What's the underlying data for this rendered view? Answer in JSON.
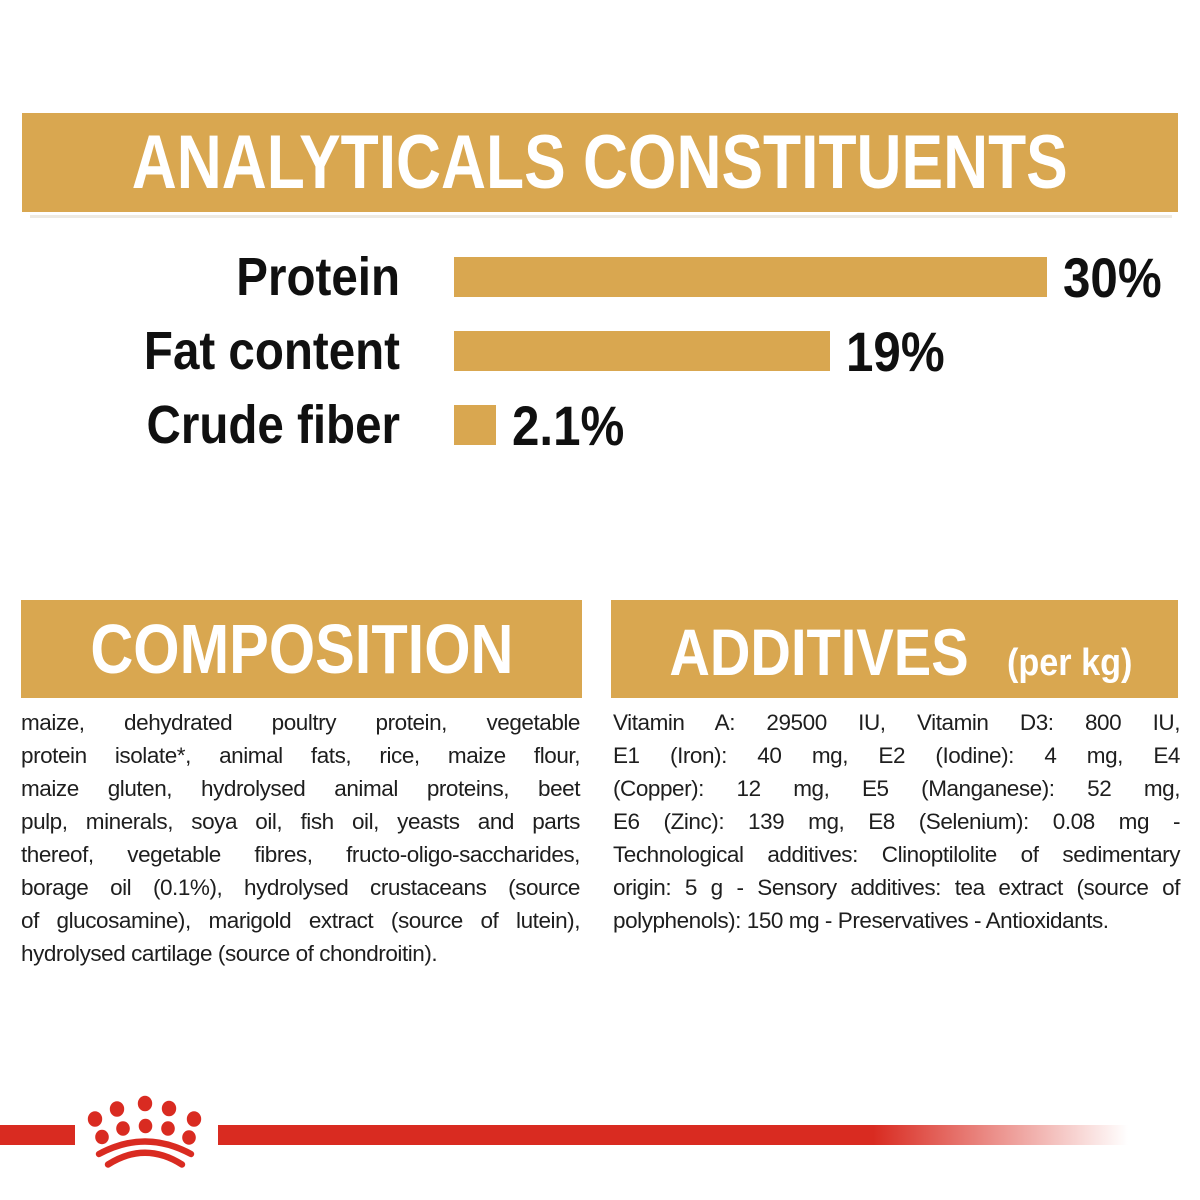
{
  "colors": {
    "gold": "#D9A750",
    "brand_red": "#D92B21",
    "heading_text": "#FFFFFF",
    "body_text": "#1E1E1E"
  },
  "banner": {
    "title": "ANALYTICALS CONSTITUENTS"
  },
  "chart_data": {
    "type": "bar",
    "orientation": "horizontal",
    "title": "ANALYTICALS CONSTITUENTS",
    "categories": [
      "Protein",
      "Fat content",
      "Crude fiber"
    ],
    "values": [
      30,
      19,
      2.1
    ],
    "value_labels": [
      "30%",
      "19%",
      "2.1%"
    ],
    "unit": "%",
    "xlim": [
      0,
      30
    ],
    "bar_color": "#D9A750",
    "grid": false,
    "legend": false
  },
  "composition": {
    "heading": "COMPOSITION",
    "lines": [
      "maize, dehydrated poultry protein, vegetable",
      "protein isolate*, animal fats, rice, maize flour,",
      "maize gluten, hydrolysed animal proteins, beet",
      "pulp, minerals, soya oil, fish oil, yeasts and parts",
      "thereof, vegetable fibres, fructo-oligo-saccharides,",
      "borage oil (0.1%), hydrolysed crustaceans (source",
      "of glucosamine), marigold extract (source of lutein),",
      "hydrolysed cartilage (source of chondroitin)."
    ]
  },
  "additives": {
    "heading": "ADDITIVES",
    "heading_suffix": "(per kg)",
    "lines": [
      "Vitamin A: 29500 IU, Vitamin D3: 800 IU,",
      "E1 (Iron): 40 mg, E2 (Iodine): 4 mg, E4",
      "(Copper): 12 mg, E5 (Manganese): 52 mg,",
      "E6 (Zinc): 139 mg, E8 (Selenium): 0.08 mg -",
      "Technological additives: Clinoptilolite of sedimentary",
      "origin: 5 g - Sensory additives: tea extract (source of",
      "polyphenols): 150 mg - Preservatives - Antioxidants."
    ]
  },
  "footer": {
    "logo": "royal-canin-crown-logo"
  }
}
